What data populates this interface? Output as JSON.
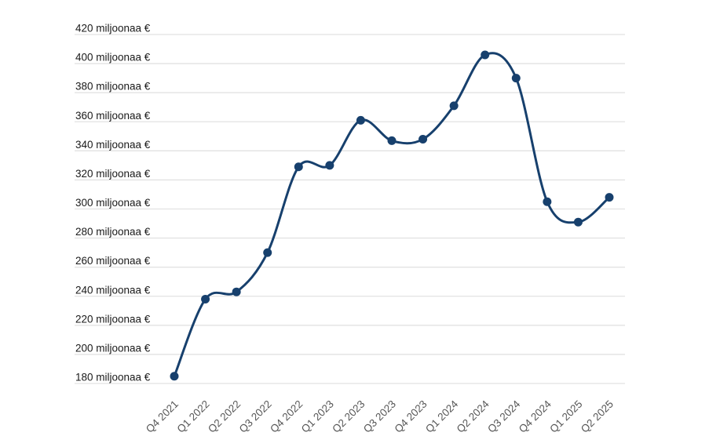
{
  "chart_data": {
    "type": "line",
    "title": "",
    "categories": [
      "Q4 2021",
      "Q1 2022",
      "Q2 2022",
      "Q3 2022",
      "Q4 2022",
      "Q1 2023",
      "Q2 2023",
      "Q3 2023",
      "Q4 2023",
      "Q1 2024",
      "Q2 2024",
      "Q3 2024",
      "Q4 2024",
      "Q1 2025",
      "Q2 2025"
    ],
    "series": [
      {
        "name": "miljoonaa €",
        "values": [
          185,
          238,
          243,
          270,
          329,
          330,
          361,
          347,
          348,
          371,
          406,
          390,
          305,
          291,
          308
        ]
      }
    ],
    "y_axis": {
      "min": 180,
      "max": 420,
      "step": 20,
      "unit": "miljoonaa €",
      "tick_labels": [
        "180 miljoonaa €",
        "200 miljoonaa €",
        "220 miljoonaa €",
        "240 miljoonaa €",
        "260 miljoonaa €",
        "280 miljoonaa €",
        "300 miljoonaa €",
        "320 miljoonaa €",
        "340 miljoonaa €",
        "360 miljoonaa €",
        "380 miljoonaa €",
        "400 miljoonaa €",
        "420 miljoonaa €"
      ]
    },
    "x_axis": {
      "label_rotation_deg": -45
    },
    "legend": "none",
    "grid": "horizontal",
    "line_style": "smooth",
    "markers": "filled-circle",
    "colors": {
      "line": "#17406d",
      "marker": "#17406d",
      "gridline": "#e2e2e2",
      "y_label": "#1a1a1a",
      "x_label": "#575757",
      "background": "#ffffff"
    }
  }
}
